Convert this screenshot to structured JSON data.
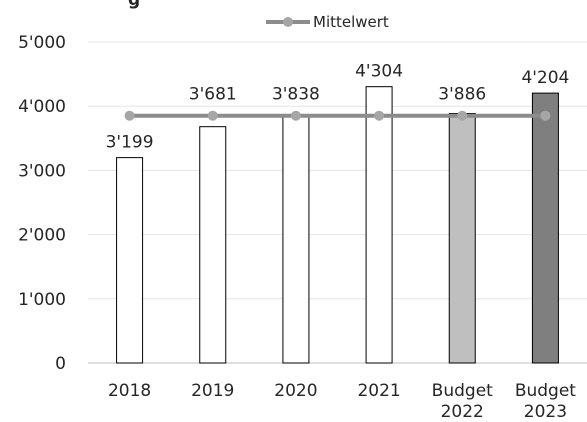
{
  "chart_data": {
    "type": "bar",
    "title": "g",
    "categories": [
      [
        "2018"
      ],
      [
        "2019"
      ],
      [
        "2020"
      ],
      [
        "2021"
      ],
      [
        "Budget",
        "2022"
      ],
      [
        "Budget",
        "2023"
      ]
    ],
    "values": [
      3199,
      3681,
      3838,
      4304,
      3886,
      4204
    ],
    "value_labels": [
      "3'199",
      "3'681",
      "3'838",
      "4'304",
      "3'886",
      "4'204"
    ],
    "bar_fills": [
      "#ffffff",
      "#ffffff",
      "#ffffff",
      "#ffffff",
      "#bfbfbf",
      "#7f7f7f"
    ],
    "series": [
      {
        "name": "Mittelwert",
        "values": [
          3852,
          3852,
          3852,
          3852,
          3852,
          3852
        ],
        "color": "#8c8c8c"
      }
    ],
    "ylim": [
      0,
      5000
    ],
    "yticks": [
      0,
      1000,
      2000,
      3000,
      4000,
      5000
    ],
    "ytick_labels": [
      "0",
      "1'000",
      "2'000",
      "3'000",
      "4'000",
      "5'000"
    ],
    "grid": true,
    "legend": "top-center",
    "xlabel": "",
    "ylabel": ""
  }
}
